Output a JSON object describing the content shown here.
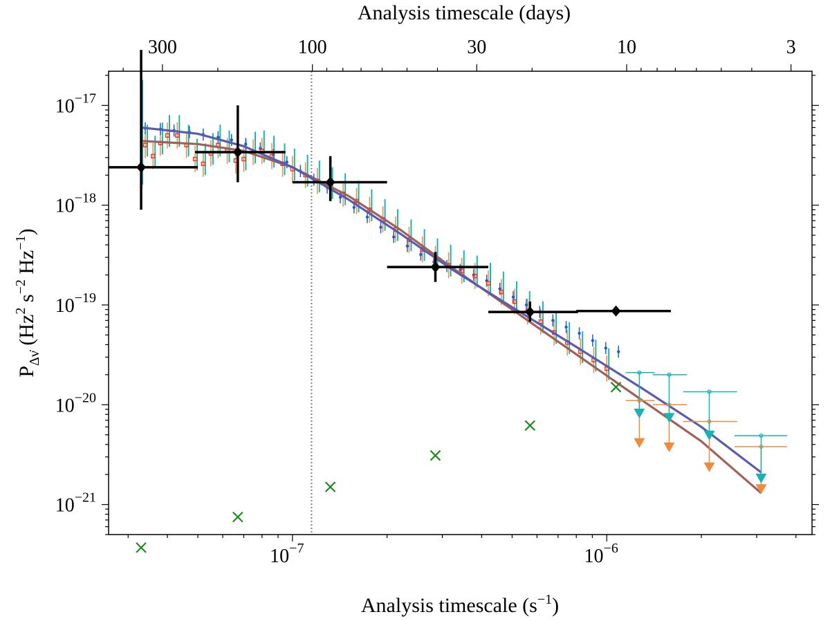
{
  "chart_data": {
    "type": "scatter",
    "xlabel": "Analysis timescale (s",
    "xlabel_sup": "−1",
    "xlabel_tail": ")",
    "x2label": "Analysis timescale (days)",
    "ylabel_main": "P",
    "ylabel_sub": "Δν̇",
    "ylabel_rest": [
      " (Hz",
      "2",
      " s",
      "−2",
      " Hz",
      "−1",
      ")"
    ],
    "xscale": "log",
    "yscale": "log",
    "xlim": [
      2.6e-08,
      4.5e-06
    ],
    "ylim": [
      5e-22,
      2.2e-17
    ],
    "x_ticks": [
      {
        "value": 1e-07,
        "base": "10",
        "exp": "−7"
      },
      {
        "value": 1e-06,
        "base": "10",
        "exp": "−6"
      }
    ],
    "y_ticks": [
      {
        "value": 1e-21,
        "base": "10",
        "exp": "−21"
      },
      {
        "value": 1e-20,
        "base": "10",
        "exp": "−20"
      },
      {
        "value": 1e-19,
        "base": "10",
        "exp": "−19"
      },
      {
        "value": 1e-18,
        "base": "10",
        "exp": "−18"
      },
      {
        "value": 1e-17,
        "base": "10",
        "exp": "−17"
      }
    ],
    "top_ticks_days": [
      {
        "days": 300,
        "label": "300"
      },
      {
        "days": 100,
        "label": "100"
      },
      {
        "days": 30,
        "label": "30"
      },
      {
        "days": 10,
        "label": "10"
      },
      {
        "days": 3,
        "label": "3"
      }
    ],
    "vline_x": 1.15e-07,
    "black_diamonds": [
      {
        "x": 3.3e-08,
        "y": 2.4e-18,
        "xerr": [
          2.6e-08,
          5e-08
        ],
        "yerr": [
          9e-19,
          3.6e-17
        ]
      },
      {
        "x": 6.7e-08,
        "y": 3.4e-18,
        "xerr": [
          4.9e-08,
          9.5e-08
        ],
        "yerr": [
          1.7e-18,
          1e-17
        ]
      },
      {
        "x": 1.32e-07,
        "y": 1.7e-18,
        "xerr": [
          1e-07,
          2e-07
        ],
        "yerr": [
          1.1e-18,
          3.1e-18
        ]
      },
      {
        "x": 2.85e-07,
        "y": 2.4e-19,
        "xerr": [
          2e-07,
          4.2e-07
        ],
        "yerr": [
          1.7e-19,
          3.4e-19
        ]
      },
      {
        "x": 5.7e-07,
        "y": 8.5e-20,
        "xerr": [
          4.2e-07,
          8.1e-07
        ],
        "yerr": [
          6.8e-20,
          1.08e-19
        ]
      },
      {
        "x": 1.07e-06,
        "y": 8.7e-20,
        "xerr": [
          8e-07,
          1.6e-06
        ],
        "yerr": [
          8.7e-20,
          8.7e-20
        ]
      }
    ],
    "green_crosses": [
      {
        "x": 3.3e-08,
        "y": 3.7e-22
      },
      {
        "x": 6.7e-08,
        "y": 7.5e-22
      },
      {
        "x": 1.32e-07,
        "y": 1.5e-21
      },
      {
        "x": 2.85e-07,
        "y": 3.1e-21
      },
      {
        "x": 5.7e-07,
        "y": 6.2e-21
      },
      {
        "x": 1.07e-06,
        "y": 1.5e-20
      }
    ],
    "blue_points": [
      {
        "x": 3.4e-08,
        "y": 5.9e-18
      },
      {
        "x": 3.8e-08,
        "y": 5.8e-18
      },
      {
        "x": 4.2e-08,
        "y": 5.6e-18
      },
      {
        "x": 4.7e-08,
        "y": 5.4e-18
      },
      {
        "x": 5.2e-08,
        "y": 5.1e-18
      },
      {
        "x": 5.8e-08,
        "y": 4.8e-18
      },
      {
        "x": 6.4e-08,
        "y": 4.5e-18
      },
      {
        "x": 7.1e-08,
        "y": 4.1e-18
      },
      {
        "x": 7.9e-08,
        "y": 3.7e-18
      },
      {
        "x": 8.7e-08,
        "y": 3.2e-18
      },
      {
        "x": 9.6e-08,
        "y": 2.7e-18
      },
      {
        "x": 1.06e-07,
        "y": 2.2e-18
      },
      {
        "x": 1.17e-07,
        "y": 1.8e-18
      },
      {
        "x": 1.29e-07,
        "y": 1.5e-18
      },
      {
        "x": 1.42e-07,
        "y": 1.2e-18
      },
      {
        "x": 1.57e-07,
        "y": 9.5e-19
      },
      {
        "x": 1.73e-07,
        "y": 7.6e-19
      },
      {
        "x": 1.91e-07,
        "y": 6e-19
      },
      {
        "x": 2.1e-07,
        "y": 4.8e-19
      },
      {
        "x": 2.32e-07,
        "y": 3.9e-19
      },
      {
        "x": 2.56e-07,
        "y": 3.2e-19
      },
      {
        "x": 2.82e-07,
        "y": 2.7e-19
      },
      {
        "x": 3.1e-07,
        "y": 2.45e-19
      },
      {
        "x": 3.42e-07,
        "y": 2.25e-19
      },
      {
        "x": 3.77e-07,
        "y": 2e-19
      },
      {
        "x": 4.15e-07,
        "y": 1.75e-19
      },
      {
        "x": 4.57e-07,
        "y": 1.45e-19
      },
      {
        "x": 5.04e-07,
        "y": 1.2e-19
      },
      {
        "x": 5.55e-07,
        "y": 1e-19
      },
      {
        "x": 6.12e-07,
        "y": 8.5e-20
      },
      {
        "x": 6.74e-07,
        "y": 7e-20
      },
      {
        "x": 7.43e-07,
        "y": 6e-20
      },
      {
        "x": 8.18e-07,
        "y": 5.2e-20
      },
      {
        "x": 9.02e-07,
        "y": 4.4e-20
      },
      {
        "x": 9.93e-07,
        "y": 3.7e-20
      },
      {
        "x": 1.09e-06,
        "y": 3.4e-20
      }
    ],
    "orange_points": [
      {
        "x": 3.4e-08,
        "y": 4e-18
      },
      {
        "x": 3.6e-08,
        "y": 3.1e-18
      },
      {
        "x": 3.8e-08,
        "y": 4.2e-18
      },
      {
        "x": 4e-08,
        "y": 5e-18
      },
      {
        "x": 4.3e-08,
        "y": 5e-18
      },
      {
        "x": 4.6e-08,
        "y": 4e-18
      },
      {
        "x": 4.9e-08,
        "y": 2.9e-18
      },
      {
        "x": 5.2e-08,
        "y": 2.6e-18
      },
      {
        "x": 5.5e-08,
        "y": 3.3e-18
      },
      {
        "x": 5.8e-08,
        "y": 4e-18
      },
      {
        "x": 6.2e-08,
        "y": 3.5e-18
      },
      {
        "x": 6.6e-08,
        "y": 2.8e-18
      },
      {
        "x": 7e-08,
        "y": 2.9e-18
      },
      {
        "x": 7.5e-08,
        "y": 3.4e-18
      },
      {
        "x": 8e-08,
        "y": 3.5e-18
      },
      {
        "x": 8.6e-08,
        "y": 3.1e-18
      },
      {
        "x": 9.3e-08,
        "y": 2.6e-18
      },
      {
        "x": 1e-07,
        "y": 2.3e-18
      },
      {
        "x": 1.1e-07,
        "y": 2e-18
      },
      {
        "x": 1.2e-07,
        "y": 1.75e-18
      },
      {
        "x": 1.32e-07,
        "y": 1.5e-18
      },
      {
        "x": 1.45e-07,
        "y": 1.3e-18
      },
      {
        "x": 1.6e-07,
        "y": 1.1e-18
      },
      {
        "x": 1.76e-07,
        "y": 9e-19
      },
      {
        "x": 1.94e-07,
        "y": 7.2e-19
      },
      {
        "x": 2.13e-07,
        "y": 5.7e-19
      },
      {
        "x": 2.35e-07,
        "y": 4.5e-19
      },
      {
        "x": 2.59e-07,
        "y": 3.6e-19
      },
      {
        "x": 2.85e-07,
        "y": 2.9e-19
      },
      {
        "x": 3.14e-07,
        "y": 2.5e-19
      },
      {
        "x": 3.46e-07,
        "y": 2.2e-19
      },
      {
        "x": 3.81e-07,
        "y": 1.95e-19
      },
      {
        "x": 4.2e-07,
        "y": 1.65e-19
      },
      {
        "x": 4.62e-07,
        "y": 1.35e-19
      },
      {
        "x": 5.09e-07,
        "y": 1.08e-19
      },
      {
        "x": 5.6e-07,
        "y": 8.6e-20
      },
      {
        "x": 6.17e-07,
        "y": 6.8e-20
      },
      {
        "x": 6.8e-07,
        "y": 5.3e-20
      },
      {
        "x": 7.49e-07,
        "y": 4.2e-20
      },
      {
        "x": 8.25e-07,
        "y": 3.4e-20
      },
      {
        "x": 9.09e-07,
        "y": 2.8e-20
      },
      {
        "x": 1e-06,
        "y": 2.3e-20
      }
    ],
    "cyan_limits": [
      {
        "x": 1.27e-06,
        "y": 2.1e-20,
        "xerr": [
          1.15e-06,
          1.42e-06
        ],
        "arrow_y": 8.3e-21
      },
      {
        "x": 1.58e-06,
        "y": 2e-20,
        "xerr": [
          1.4e-06,
          1.8e-06
        ],
        "arrow_y": 7.5e-21
      },
      {
        "x": 2.12e-06,
        "y": 1.35e-20,
        "xerr": [
          1.75e-06,
          2.6e-06
        ],
        "arrow_y": 5e-21
      },
      {
        "x": 3.1e-06,
        "y": 4.9e-21,
        "xerr": [
          2.55e-06,
          3.75e-06
        ],
        "arrow_y": 1.85e-21
      }
    ],
    "orange_limits": [
      {
        "x": 1.27e-06,
        "y": 1.1e-20,
        "xerr": [
          1.15e-06,
          1.42e-06
        ],
        "arrow_y": 4.2e-21
      },
      {
        "x": 1.58e-06,
        "y": 1e-20,
        "xerr": [
          1.4e-06,
          1.8e-06
        ],
        "arrow_y": 3.8e-21
      },
      {
        "x": 2.12e-06,
        "y": 6.8e-21,
        "xerr": [
          1.75e-06,
          2.6e-06
        ],
        "arrow_y": 2.4e-21
      },
      {
        "x": 3.1e-06,
        "y": 3.8e-21,
        "xerr": [
          2.55e-06,
          3.75e-06
        ],
        "arrow_y": 1.45e-21
      }
    ],
    "model_blue": [
      {
        "x": 3.3e-08,
        "y": 6e-18
      },
      {
        "x": 5e-08,
        "y": 5.2e-18
      },
      {
        "x": 7e-08,
        "y": 3.9e-18
      },
      {
        "x": 1e-07,
        "y": 2.4e-18
      },
      {
        "x": 1.5e-07,
        "y": 1.15e-18
      },
      {
        "x": 2.2e-07,
        "y": 5.2e-19
      },
      {
        "x": 3.2e-07,
        "y": 2.3e-19
      },
      {
        "x": 5e-07,
        "y": 9.5e-20
      },
      {
        "x": 8e-07,
        "y": 3.8e-20
      },
      {
        "x": 1.3e-06,
        "y": 1.45e-20
      },
      {
        "x": 2e-06,
        "y": 6e-21
      },
      {
        "x": 3.1e-06,
        "y": 2.1e-21
      }
    ],
    "model_brown": [
      {
        "x": 3.3e-08,
        "y": 4.4e-18
      },
      {
        "x": 5e-08,
        "y": 4.1e-18
      },
      {
        "x": 7e-08,
        "y": 3.5e-18
      },
      {
        "x": 1e-07,
        "y": 2.4e-18
      },
      {
        "x": 1.5e-07,
        "y": 1.25e-18
      },
      {
        "x": 2.2e-07,
        "y": 5.7e-19
      },
      {
        "x": 3.2e-07,
        "y": 2.4e-19
      },
      {
        "x": 5e-07,
        "y": 9e-20
      },
      {
        "x": 8e-07,
        "y": 3.2e-20
      },
      {
        "x": 1.3e-06,
        "y": 1.1e-20
      },
      {
        "x": 2e-06,
        "y": 4.3e-21
      },
      {
        "x": 3.1e-06,
        "y": 1.3e-21
      }
    ],
    "cyan_band_spike": {
      "x": 3.3e-08,
      "ylow": 1.6e-18,
      "yhigh": 1.8e-17
    },
    "colors": {
      "black": "#000000",
      "green": "#1a8a1a",
      "blue": "#1f5fc8",
      "cyan": "#19b3b3",
      "orange": "#f08a3c",
      "red": "#e0301e",
      "model_blue": "#5a5ab0",
      "model_brown": "#a0605a",
      "vline": "#808080"
    }
  }
}
